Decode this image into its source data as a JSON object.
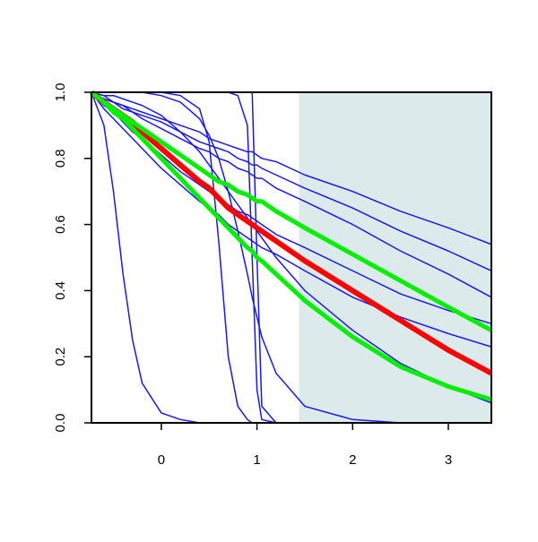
{
  "chart_data": {
    "type": "line",
    "x": [
      -0.73,
      -0.6,
      -0.5,
      -0.4,
      -0.3,
      -0.2,
      0,
      0.2,
      0.4,
      0.5,
      0.6,
      0.7,
      0.8,
      0.9,
      0.95,
      1.0,
      1.05,
      1.2,
      1.5,
      2,
      2.5,
      3,
      3.45
    ],
    "xlim": [
      -0.73,
      3.45
    ],
    "ylim": [
      0,
      1
    ],
    "xticks": [
      0,
      1,
      2,
      3
    ],
    "yticks": [
      {
        "value": 0,
        "label": "0.0"
      },
      0.2,
      0.4,
      0.6,
      0.8,
      {
        "value": 1,
        "label": "1.0"
      }
    ],
    "shaded_region": {
      "xmin": 1.44,
      "xmax": 3.45,
      "color": "#ddeaeb"
    },
    "series": [
      {
        "color": "#1a1ae6",
        "width": 1.5,
        "values": [
          1,
          0.99,
          0.97,
          0.96,
          0.95,
          0.94,
          0.92,
          0.9,
          0.88,
          0.86,
          0.85,
          0.84,
          0.83,
          0.82,
          0.82,
          0.81,
          0.8,
          0.79,
          0.75,
          0.7,
          0.64,
          0.59,
          0.54
        ]
      },
      {
        "color": "#1a1ae6",
        "width": 1.5,
        "values": [
          1,
          0.98,
          0.97,
          0.96,
          0.94,
          0.93,
          0.91,
          0.88,
          0.85,
          0.84,
          0.83,
          0.82,
          0.8,
          0.79,
          0.78,
          0.78,
          0.77,
          0.75,
          0.71,
          0.65,
          0.58,
          0.52,
          0.46
        ]
      },
      {
        "color": "#1a1ae6",
        "width": 1.5,
        "values": [
          1,
          0.98,
          0.97,
          0.95,
          0.94,
          0.92,
          0.89,
          0.86,
          0.83,
          0.82,
          0.8,
          0.79,
          0.77,
          0.76,
          0.75,
          0.74,
          0.74,
          0.71,
          0.67,
          0.6,
          0.52,
          0.45,
          0.38
        ]
      },
      {
        "color": "#1a1ae6",
        "width": 1.5,
        "values": [
          1,
          0.96,
          0.94,
          0.91,
          0.88,
          0.86,
          0.81,
          0.76,
          0.72,
          0.7,
          0.68,
          0.66,
          0.64,
          0.63,
          0.62,
          0.61,
          0.6,
          0.57,
          0.53,
          0.46,
          0.39,
          0.34,
          0.3
        ]
      },
      {
        "color": "#1a1ae6",
        "width": 1.5,
        "values": [
          1,
          0.95,
          0.92,
          0.89,
          0.86,
          0.83,
          0.77,
          0.72,
          0.67,
          0.65,
          0.63,
          0.6,
          0.58,
          0.56,
          0.55,
          0.54,
          0.53,
          0.51,
          0.46,
          0.38,
          0.32,
          0.27,
          0.23
        ]
      },
      {
        "color": "#1a1ae6",
        "width": 1.5,
        "values": [
          1,
          0.9,
          0.7,
          0.45,
          0.25,
          0.12,
          0.03,
          0.01,
          0,
          0,
          0,
          0,
          0,
          0,
          0,
          0,
          0,
          0,
          0,
          0,
          0,
          0,
          0
        ]
      },
      {
        "color": "#1a1ae6",
        "width": 1.5,
        "values": [
          1,
          1,
          1,
          1,
          1,
          1,
          1,
          0.99,
          0.95,
          0.85,
          0.55,
          0.2,
          0.05,
          0.01,
          0,
          0,
          0,
          0,
          0,
          0,
          0,
          0,
          0
        ]
      },
      {
        "color": "#1a1ae6",
        "width": 1.5,
        "values": [
          1,
          1,
          1,
          1,
          1,
          1,
          1,
          1,
          1,
          1,
          1,
          1,
          0.99,
          0.9,
          0.5,
          0.1,
          0.01,
          0,
          0,
          0,
          0,
          0,
          0
        ]
      },
      {
        "color": "#1a1ae6",
        "width": 1.5,
        "values": [
          1,
          1,
          1,
          1,
          1,
          1,
          1,
          1,
          1,
          1,
          1,
          1,
          1,
          1,
          1,
          0.5,
          0.05,
          0,
          0,
          0,
          0,
          0,
          0
        ]
      },
      {
        "color": "#1a1ae6",
        "width": 1.5,
        "values": [
          1,
          1,
          1,
          1,
          1,
          1,
          0.99,
          0.97,
          0.92,
          0.87,
          0.8,
          0.7,
          0.58,
          0.45,
          0.38,
          0.32,
          0.26,
          0.15,
          0.05,
          0.01,
          0,
          0,
          0
        ]
      },
      {
        "color": "#1a1ae6",
        "width": 1.5,
        "values": [
          1,
          0.99,
          0.99,
          0.98,
          0.97,
          0.96,
          0.93,
          0.88,
          0.82,
          0.78,
          0.74,
          0.7,
          0.66,
          0.62,
          0.6,
          0.58,
          0.56,
          0.5,
          0.4,
          0.28,
          0.18,
          0.11,
          0.06
        ]
      },
      {
        "color": "#ff0000",
        "width": 6,
        "values": [
          1,
          0.97,
          0.95,
          0.93,
          0.91,
          0.88,
          0.83,
          0.78,
          0.73,
          0.71,
          0.68,
          0.65,
          0.63,
          0.61,
          0.6,
          0.59,
          0.58,
          0.55,
          0.49,
          0.4,
          0.31,
          0.22,
          0.15
        ]
      },
      {
        "color": "#00ee00",
        "width": 5,
        "values": [
          1,
          0.97,
          0.95,
          0.93,
          0.91,
          0.89,
          0.85,
          0.81,
          0.77,
          0.75,
          0.73,
          0.72,
          0.7,
          0.69,
          0.68,
          0.67,
          0.67,
          0.64,
          0.59,
          0.51,
          0.43,
          0.35,
          0.28
        ]
      },
      {
        "color": "#00ee00",
        "width": 5,
        "values": [
          1,
          0.97,
          0.94,
          0.92,
          0.89,
          0.86,
          0.8,
          0.74,
          0.68,
          0.65,
          0.62,
          0.59,
          0.56,
          0.53,
          0.52,
          0.5,
          0.49,
          0.45,
          0.37,
          0.26,
          0.17,
          0.11,
          0.07
        ]
      }
    ]
  }
}
